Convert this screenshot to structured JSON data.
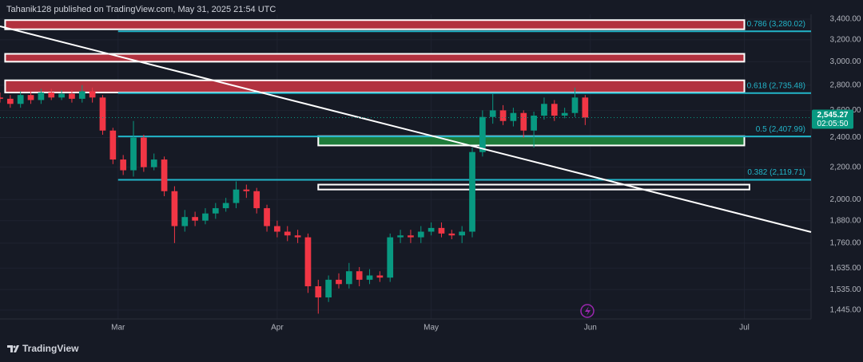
{
  "header": "Tahanik128 published on TradingView.com, May 31, 2025 21:54 UTC",
  "footer": "TradingView",
  "chart_data": {
    "type": "candlestick",
    "log_scale": true,
    "grid": true,
    "up_color": "#089981",
    "down_color": "#f23645",
    "x": [
      "2025-02-06",
      "2025-02-08",
      "2025-02-10",
      "2025-02-12",
      "2025-02-14",
      "2025-02-16",
      "2025-02-18",
      "2025-02-20",
      "2025-02-22",
      "2025-02-24",
      "2025-02-26",
      "2025-02-28",
      "2025-03-02",
      "2025-03-04",
      "2025-03-06",
      "2025-03-08",
      "2025-03-10",
      "2025-03-12",
      "2025-03-14",
      "2025-03-16",
      "2025-03-18",
      "2025-03-20",
      "2025-03-22",
      "2025-03-24",
      "2025-03-26",
      "2025-03-28",
      "2025-03-30",
      "2025-04-01",
      "2025-04-03",
      "2025-04-05",
      "2025-04-07",
      "2025-04-09",
      "2025-04-11",
      "2025-04-13",
      "2025-04-15",
      "2025-04-17",
      "2025-04-19",
      "2025-04-21",
      "2025-04-23",
      "2025-04-25",
      "2025-04-27",
      "2025-04-29",
      "2025-05-01",
      "2025-05-03",
      "2025-05-05",
      "2025-05-07",
      "2025-05-09",
      "2025-05-11",
      "2025-05-13",
      "2025-05-15",
      "2025-05-17",
      "2025-05-19",
      "2025-05-21",
      "2025-05-23",
      "2025-05-25",
      "2025-05-27",
      "2025-05-29",
      "2025-05-31"
    ],
    "open": [
      2700,
      2690,
      2650,
      2720,
      2680,
      2740,
      2700,
      2730,
      2690,
      2750,
      2700,
      2450,
      2250,
      2180,
      2400,
      2200,
      2250,
      2050,
      1850,
      1900,
      1880,
      1920,
      1950,
      1980,
      2060,
      2050,
      1950,
      1850,
      1820,
      1800,
      1790,
      1550,
      1500,
      1580,
      1560,
      1620,
      1580,
      1600,
      1590,
      1790,
      1800,
      1790,
      1820,
      1840,
      1810,
      1800,
      1820,
      2300,
      2550,
      2600,
      2520,
      2580,
      2450,
      2560,
      2650,
      2560,
      2580,
      2700
    ],
    "high": [
      2740,
      2720,
      2750,
      2750,
      2770,
      2770,
      2760,
      2760,
      2800,
      2780,
      2720,
      2470,
      2280,
      2520,
      2420,
      2290,
      2270,
      2080,
      1940,
      1930,
      1950,
      1980,
      2010,
      2110,
      2090,
      2070,
      1970,
      1880,
      1850,
      1830,
      1810,
      1580,
      1600,
      1610,
      1660,
      1640,
      1630,
      1620,
      1810,
      1830,
      1830,
      1850,
      1870,
      1870,
      1830,
      1850,
      2330,
      2600,
      2730,
      2640,
      2620,
      2600,
      2590,
      2700,
      2680,
      2620,
      2780,
      2720
    ],
    "low": [
      2660,
      2620,
      2620,
      2650,
      2650,
      2680,
      2680,
      2660,
      2660,
      2660,
      2420,
      2220,
      2150,
      2140,
      2170,
      2180,
      2020,
      1760,
      1820,
      1850,
      1860,
      1890,
      1930,
      1950,
      2010,
      1920,
      1820,
      1790,
      1770,
      1760,
      1520,
      1430,
      1480,
      1540,
      1540,
      1550,
      1560,
      1570,
      1570,
      1760,
      1760,
      1760,
      1800,
      1790,
      1780,
      1760,
      1790,
      2270,
      2500,
      2490,
      2480,
      2400,
      2330,
      2530,
      2520,
      2540,
      2550,
      2490
    ],
    "close": [
      2690,
      2650,
      2720,
      2680,
      2740,
      2700,
      2730,
      2690,
      2750,
      2700,
      2450,
      2250,
      2180,
      2400,
      2200,
      2250,
      2050,
      1850,
      1900,
      1880,
      1920,
      1950,
      1980,
      2060,
      2050,
      1950,
      1850,
      1820,
      1800,
      1790,
      1550,
      1500,
      1580,
      1560,
      1620,
      1580,
      1600,
      1590,
      1790,
      1800,
      1790,
      1820,
      1840,
      1810,
      1800,
      1820,
      2300,
      2550,
      2600,
      2520,
      2580,
      2450,
      2560,
      2650,
      2560,
      2580,
      2700,
      2545.27
    ],
    "last_price": {
      "value": 2545.27,
      "label": "2,545.27"
    },
    "countdown": "02:05:50",
    "xlim": [
      "2025-02-06",
      "2025-07-14"
    ],
    "xticks": [
      {
        "value": "2025-03-01",
        "label": "Mar"
      },
      {
        "value": "2025-04-01",
        "label": "Apr"
      },
      {
        "value": "2025-05-01",
        "label": "May"
      },
      {
        "value": "2025-06-01",
        "label": "Jun"
      },
      {
        "value": "2025-07-01",
        "label": "Jul"
      }
    ],
    "ylim": [
      1408,
      3448
    ],
    "yticks": [
      {
        "value": 3400,
        "label": "3,400.00"
      },
      {
        "value": 3200,
        "label": "3,200.00"
      },
      {
        "value": 3000,
        "label": "3,000.00"
      },
      {
        "value": 2800,
        "label": "2,800.00"
      },
      {
        "value": 2600,
        "label": "2,600.00"
      },
      {
        "value": 2400,
        "label": "2,400.00"
      },
      {
        "value": 2200,
        "label": "2,200.00"
      },
      {
        "value": 2000,
        "label": "2,000.00"
      },
      {
        "value": 1880,
        "label": "1,880.00"
      },
      {
        "value": 1760,
        "label": "1,760.00"
      },
      {
        "value": 1635,
        "label": "1,635.00"
      },
      {
        "value": 1535,
        "label": "1,535.00"
      },
      {
        "value": 1445,
        "label": "1,445.00"
      }
    ],
    "fib_color": "#22b5c9",
    "fib_levels": [
      {
        "value": 3280.02,
        "label": "0.786 (3,280.02)",
        "start": "2025-03-01"
      },
      {
        "value": 2735.48,
        "label": "0.618 (2,735.48)",
        "start": "2025-03-01"
      },
      {
        "value": 2407.99,
        "label": "0.5 (2,407.99)",
        "start": "2025-03-01"
      },
      {
        "value": 2119.71,
        "label": "0.382 (2,119.71)",
        "start": "2025-03-01"
      }
    ],
    "zones": [
      {
        "x": [
          "2025-02-07",
          "2025-07-01"
        ],
        "y": [
          3390,
          3300
        ],
        "color": "#b2323f"
      },
      {
        "x": [
          "2025-02-07",
          "2025-07-01"
        ],
        "y": [
          3070,
          3000
        ],
        "color": "#b2323f"
      },
      {
        "x": [
          "2025-02-07",
          "2025-07-01"
        ],
        "y": [
          2840,
          2740
        ],
        "color": "#b2323f"
      },
      {
        "x": [
          "2025-04-09",
          "2025-07-01"
        ],
        "y": [
          2410,
          2345
        ],
        "color": "#1e7b3a"
      },
      {
        "x": [
          "2025-04-09",
          "2025-07-02"
        ],
        "y": [
          2090,
          2060
        ],
        "color": "#161a25"
      }
    ],
    "trendline": {
      "x": [
        "2025-02-06",
        "2025-07-14"
      ],
      "y": [
        3329,
        1818
      ],
      "color": "#ffffff"
    }
  }
}
